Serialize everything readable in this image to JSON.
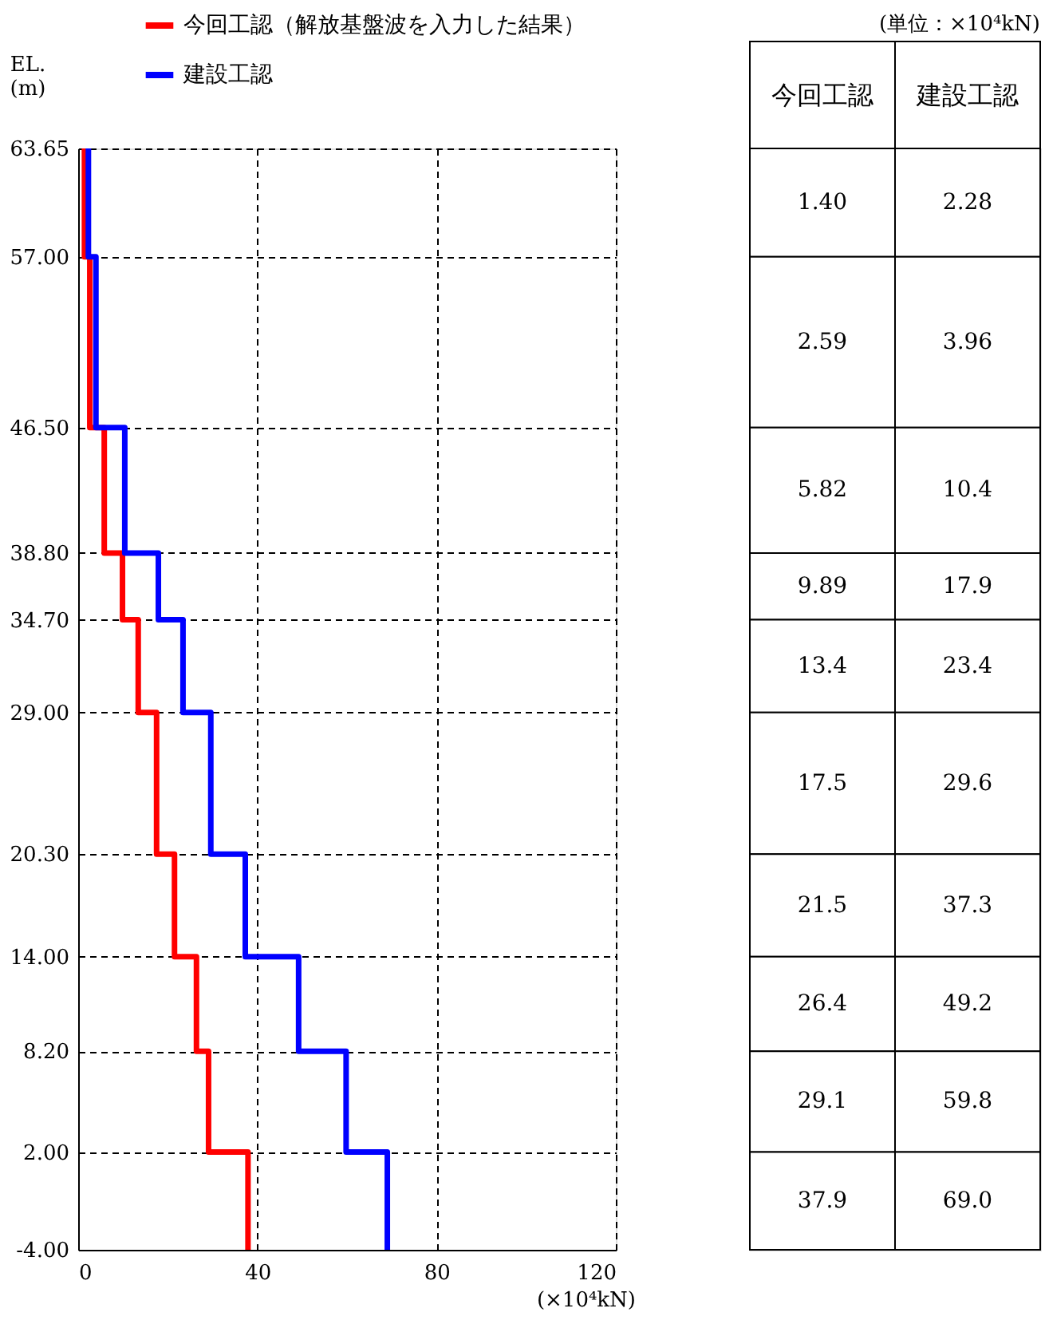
{
  "chart_data": [
    {
      "type": "line",
      "xlabel": "(×10⁴kN)",
      "ylabel": "EL.\n(m)",
      "legend": "top left",
      "grid": true,
      "line_style": "solid",
      "marker": "none",
      "xlim": [
        0,
        120
      ],
      "xticks": [
        0,
        40,
        80,
        120
      ],
      "ylim": [
        -4,
        63.65
      ],
      "yticks": [
        63.65,
        {
          "value": 57,
          "label": "57.00"
        },
        {
          "value": 46.5,
          "label": "46.50"
        },
        {
          "value": 38.8,
          "label": "38.80"
        },
        {
          "value": 34.7,
          "label": "34.70"
        },
        {
          "value": 29,
          "label": "29.00"
        },
        {
          "value": 20.3,
          "label": "20.30"
        },
        {
          "value": 14,
          "label": "14.00"
        },
        {
          "value": 8.2,
          "label": "8.20"
        },
        {
          "value": 2,
          "label": "2.00"
        },
        {
          "value": -4,
          "label": "-4.00"
        }
      ],
      "series": [
        {
          "name": "今回工認（解放基盤波を入力した結果）",
          "color": "#ff0000",
          "x": [
            1.4,
            1.4,
            2.59,
            2.59,
            5.82,
            5.82,
            9.89,
            9.89,
            13.4,
            13.4,
            17.5,
            17.5,
            21.5,
            21.5,
            26.4,
            26.4,
            29.1,
            29.1,
            37.9,
            37.9
          ],
          "values": [
            63.65,
            57,
            57,
            46.5,
            46.5,
            38.8,
            38.8,
            34.7,
            34.7,
            29,
            29,
            20.3,
            20.3,
            14,
            14,
            8.2,
            8.2,
            2,
            2,
            -4
          ]
        },
        {
          "name": "建設工認",
          "color": "#0000ff",
          "x": [
            2.28,
            2.28,
            3.96,
            3.96,
            10.4,
            10.4,
            17.9,
            17.9,
            23.4,
            23.4,
            29.6,
            29.6,
            37.3,
            37.3,
            49.2,
            49.2,
            59.8,
            59.8,
            69.0,
            69.0
          ],
          "values": [
            63.65,
            57,
            57,
            46.5,
            46.5,
            38.8,
            38.8,
            34.7,
            34.7,
            29,
            29,
            20.3,
            20.3,
            14,
            14,
            8.2,
            8.2,
            2,
            2,
            -4
          ]
        }
      ]
    },
    {
      "type": "other",
      "title": "(単位：×10⁴kN)",
      "annotations": [
        "今回工認",
        "建設工認",
        "1.40",
        "2.28",
        "2.59",
        "3.96",
        "5.82",
        "10.4",
        "9.89",
        "17.9",
        "13.4",
        "23.4",
        "17.5",
        "29.6",
        "21.5",
        "37.3",
        "26.4",
        "49.2",
        "29.1",
        "59.8",
        "37.9",
        "69.0"
      ]
    }
  ]
}
